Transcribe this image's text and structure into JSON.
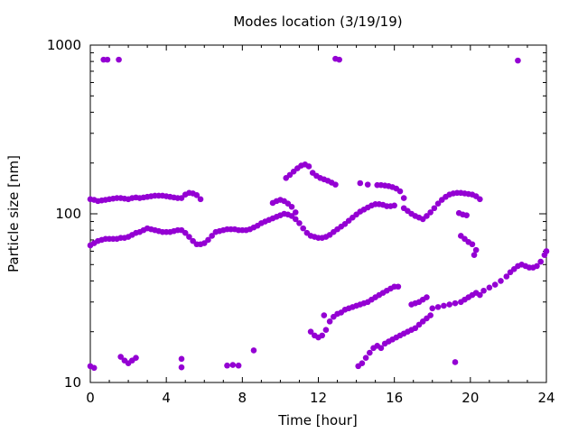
{
  "chart_data": {
    "type": "scatter",
    "title": "Modes location (3/19/19)",
    "xlabel": "Time [hour]",
    "ylabel": "Particle size [nm]",
    "xlim": [
      0,
      24
    ],
    "ylim": [
      10,
      1000
    ],
    "yscale": "log",
    "x_ticks": [
      0,
      4,
      8,
      12,
      16,
      20,
      24
    ],
    "x_tick_labels": [
      "0",
      "4",
      "8",
      "12",
      "16",
      "20",
      "24"
    ],
    "y_ticks": [
      10,
      100,
      1000
    ],
    "y_tick_labels": [
      "10",
      "100",
      "1000"
    ],
    "marker_color": "#9400d3",
    "grid": false,
    "series": [
      {
        "points": [
          [
            0.0,
            65
          ],
          [
            0.2,
            67
          ],
          [
            0.4,
            69
          ],
          [
            0.6,
            70
          ],
          [
            0.8,
            71
          ],
          [
            1.0,
            71
          ],
          [
            1.2,
            71
          ],
          [
            1.4,
            71
          ],
          [
            1.6,
            72
          ],
          [
            1.8,
            72
          ],
          [
            2.0,
            73
          ],
          [
            2.2,
            75
          ],
          [
            2.4,
            77
          ],
          [
            2.6,
            78
          ],
          [
            2.8,
            80
          ],
          [
            3.0,
            82
          ],
          [
            3.2,
            81
          ],
          [
            3.4,
            80
          ],
          [
            3.6,
            79
          ],
          [
            3.8,
            78
          ],
          [
            4.0,
            78
          ],
          [
            4.2,
            78
          ],
          [
            4.4,
            79
          ],
          [
            4.6,
            80
          ],
          [
            4.8,
            80
          ],
          [
            5.0,
            77
          ],
          [
            5.2,
            73
          ],
          [
            5.4,
            69
          ],
          [
            5.6,
            66
          ],
          [
            5.8,
            66
          ],
          [
            6.0,
            67
          ],
          [
            6.2,
            70
          ],
          [
            6.4,
            74
          ],
          [
            6.6,
            78
          ],
          [
            6.8,
            79
          ],
          [
            7.0,
            80
          ],
          [
            7.2,
            81
          ],
          [
            7.4,
            81
          ],
          [
            7.6,
            81
          ],
          [
            7.8,
            80
          ],
          [
            8.0,
            80
          ],
          [
            8.2,
            80
          ],
          [
            8.4,
            81
          ],
          [
            8.6,
            83
          ],
          [
            8.8,
            85
          ],
          [
            9.0,
            88
          ],
          [
            9.2,
            90
          ],
          [
            9.4,
            92
          ],
          [
            9.6,
            94
          ],
          [
            9.8,
            96
          ],
          [
            10.0,
            98
          ],
          [
            10.2,
            100
          ],
          [
            10.4,
            99
          ],
          [
            10.6,
            97
          ],
          [
            10.8,
            93
          ],
          [
            11.0,
            88
          ],
          [
            11.2,
            82
          ],
          [
            11.4,
            77
          ],
          [
            11.6,
            74
          ],
          [
            11.8,
            73
          ],
          [
            12.0,
            72
          ],
          [
            12.2,
            72
          ],
          [
            12.4,
            73
          ],
          [
            12.6,
            75
          ],
          [
            12.8,
            78
          ],
          [
            13.0,
            81
          ],
          [
            13.2,
            84
          ],
          [
            13.4,
            87
          ],
          [
            13.6,
            91
          ],
          [
            13.8,
            95
          ],
          [
            14.0,
            99
          ],
          [
            14.2,
            103
          ],
          [
            14.4,
            106
          ],
          [
            14.6,
            109
          ],
          [
            14.8,
            112
          ],
          [
            15.0,
            114
          ],
          [
            15.2,
            114
          ],
          [
            15.4,
            113
          ],
          [
            15.6,
            111
          ],
          [
            15.8,
            111
          ],
          [
            16.0,
            112
          ]
        ]
      },
      {
        "points": [
          [
            0.0,
            122
          ],
          [
            0.2,
            121
          ],
          [
            0.4,
            119
          ],
          [
            0.6,
            120
          ],
          [
            0.8,
            121
          ],
          [
            1.0,
            122
          ],
          [
            1.2,
            123
          ],
          [
            1.4,
            124
          ],
          [
            1.6,
            124
          ],
          [
            1.8,
            123
          ],
          [
            2.0,
            122
          ],
          [
            2.2,
            124
          ],
          [
            2.4,
            125
          ],
          [
            2.6,
            124
          ],
          [
            2.8,
            125
          ],
          [
            3.0,
            126
          ],
          [
            3.2,
            127
          ],
          [
            3.4,
            128
          ],
          [
            3.6,
            128
          ],
          [
            3.8,
            128
          ],
          [
            4.0,
            127
          ],
          [
            4.2,
            126
          ],
          [
            4.4,
            125
          ],
          [
            4.6,
            124
          ],
          [
            4.8,
            124
          ],
          [
            5.0,
            130
          ],
          [
            5.2,
            133
          ],
          [
            5.4,
            132
          ],
          [
            5.6,
            129
          ],
          [
            5.8,
            122
          ]
        ]
      },
      {
        "points": [
          [
            9.6,
            116
          ],
          [
            9.8,
            119
          ],
          [
            10.0,
            121
          ],
          [
            10.2,
            119
          ],
          [
            10.4,
            115
          ],
          [
            10.6,
            110
          ],
          [
            10.8,
            102
          ]
        ]
      },
      {
        "points": [
          [
            16.5,
            108
          ],
          [
            16.7,
            104
          ],
          [
            16.9,
            100
          ],
          [
            17.1,
            97
          ],
          [
            17.3,
            95
          ],
          [
            17.5,
            93
          ],
          [
            17.7,
            97
          ],
          [
            17.9,
            102
          ],
          [
            18.1,
            108
          ],
          [
            18.3,
            115
          ],
          [
            18.5,
            121
          ],
          [
            18.7,
            126
          ],
          [
            18.9,
            130
          ],
          [
            19.1,
            132
          ],
          [
            19.3,
            133
          ],
          [
            19.5,
            133
          ],
          [
            19.7,
            132
          ],
          [
            19.9,
            131
          ],
          [
            20.1,
            130
          ],
          [
            20.3,
            127
          ],
          [
            20.5,
            122
          ]
        ]
      },
      {
        "points": [
          [
            19.4,
            101
          ],
          [
            19.6,
            99
          ],
          [
            19.8,
            98
          ],
          [
            19.5,
            74
          ],
          [
            19.7,
            71
          ],
          [
            19.9,
            68
          ],
          [
            20.1,
            66
          ],
          [
            20.3,
            61
          ],
          [
            20.2,
            57
          ]
        ]
      },
      {
        "points": [
          [
            10.3,
            163
          ],
          [
            10.5,
            170
          ],
          [
            10.7,
            178
          ],
          [
            10.9,
            186
          ],
          [
            11.1,
            193
          ],
          [
            11.3,
            196
          ],
          [
            11.5,
            191
          ],
          [
            11.7,
            175
          ],
          [
            11.9,
            168
          ],
          [
            12.1,
            163
          ],
          [
            12.3,
            160
          ],
          [
            12.5,
            157
          ],
          [
            12.7,
            153
          ],
          [
            12.9,
            149
          ]
        ]
      },
      {
        "points": [
          [
            14.2,
            152
          ],
          [
            14.6,
            149
          ],
          [
            15.1,
            148
          ],
          [
            15.3,
            148
          ],
          [
            15.5,
            147
          ],
          [
            15.7,
            146
          ],
          [
            15.9,
            144
          ],
          [
            16.1,
            141
          ],
          [
            16.3,
            136
          ],
          [
            16.5,
            124
          ]
        ]
      },
      {
        "points": [
          [
            11.6,
            20
          ],
          [
            11.8,
            19
          ],
          [
            12.0,
            18.5
          ],
          [
            12.2,
            19
          ],
          [
            12.4,
            20.5
          ],
          [
            12.3,
            25
          ],
          [
            12.6,
            23
          ],
          [
            12.8,
            24.5
          ],
          [
            13.0,
            25.5
          ],
          [
            13.2,
            26
          ],
          [
            13.4,
            27
          ],
          [
            13.6,
            27.5
          ],
          [
            13.8,
            28
          ],
          [
            14.0,
            28.5
          ],
          [
            14.2,
            29
          ],
          [
            14.4,
            29.5
          ],
          [
            14.6,
            30
          ],
          [
            14.8,
            31
          ],
          [
            15.0,
            32
          ],
          [
            15.2,
            33
          ],
          [
            15.4,
            34
          ],
          [
            15.6,
            35
          ],
          [
            15.8,
            36
          ],
          [
            16.0,
            37
          ],
          [
            16.2,
            37
          ]
        ]
      },
      {
        "points": [
          [
            14.1,
            12.5
          ],
          [
            14.3,
            13
          ],
          [
            14.5,
            14
          ],
          [
            14.7,
            15
          ],
          [
            14.9,
            16
          ],
          [
            15.1,
            16.5
          ],
          [
            15.3,
            16
          ],
          [
            15.5,
            17
          ],
          [
            15.7,
            17.5
          ],
          [
            15.9,
            18
          ],
          [
            16.1,
            18.5
          ],
          [
            16.3,
            19
          ],
          [
            16.5,
            19.5
          ],
          [
            16.7,
            20
          ],
          [
            16.9,
            20.5
          ],
          [
            17.1,
            21
          ],
          [
            17.3,
            22
          ],
          [
            17.5,
            23
          ],
          [
            17.7,
            24
          ],
          [
            17.9,
            25
          ]
        ]
      },
      {
        "points": [
          [
            16.9,
            29
          ],
          [
            17.1,
            29.5
          ],
          [
            17.3,
            30
          ],
          [
            17.5,
            31
          ],
          [
            17.7,
            32
          ],
          [
            18.0,
            27.5
          ],
          [
            18.3,
            28
          ],
          [
            18.6,
            28.5
          ],
          [
            18.9,
            29
          ],
          [
            19.2,
            29.5
          ],
          [
            19.5,
            30
          ],
          [
            19.7,
            31
          ],
          [
            19.9,
            32
          ],
          [
            20.1,
            33
          ],
          [
            20.3,
            34
          ],
          [
            20.5,
            33
          ],
          [
            20.7,
            35
          ],
          [
            21.0,
            36.5
          ],
          [
            21.3,
            38
          ],
          [
            21.6,
            40
          ],
          [
            21.9,
            42.5
          ],
          [
            22.1,
            45
          ],
          [
            22.3,
            47
          ],
          [
            22.5,
            49
          ],
          [
            22.7,
            50
          ],
          [
            22.9,
            49
          ],
          [
            23.1,
            48
          ],
          [
            23.3,
            48
          ],
          [
            23.5,
            49
          ],
          [
            23.7,
            52
          ],
          [
            23.9,
            57
          ],
          [
            24.0,
            60
          ]
        ]
      },
      {
        "points": [
          [
            0.7,
            820
          ],
          [
            0.9,
            820
          ],
          [
            1.5,
            820
          ],
          [
            12.9,
            830
          ],
          [
            13.1,
            820
          ],
          [
            22.5,
            810
          ]
        ]
      },
      {
        "points": [
          [
            0.0,
            12.5
          ],
          [
            0.2,
            12.2
          ],
          [
            1.6,
            14.2
          ],
          [
            1.8,
            13.5
          ],
          [
            2.0,
            13
          ],
          [
            2.2,
            13.5
          ],
          [
            2.4,
            14
          ],
          [
            4.8,
            12.3
          ],
          [
            4.8,
            13.8
          ],
          [
            7.2,
            12.6
          ],
          [
            7.5,
            12.7
          ],
          [
            7.8,
            12.6
          ],
          [
            8.6,
            15.5
          ],
          [
            19.2,
            13.2
          ]
        ]
      }
    ]
  }
}
